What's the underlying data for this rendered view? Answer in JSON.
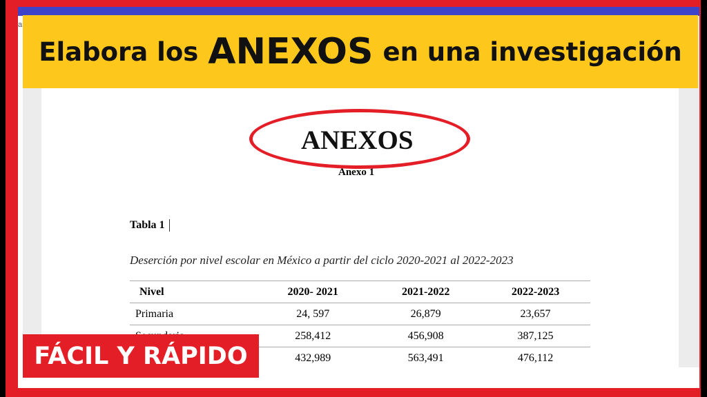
{
  "banner": {
    "pre": "Elabora los",
    "highlight": "ANEXOS",
    "post": "en una investigación"
  },
  "background_fragment": "arc",
  "document": {
    "title": "ANEXOS",
    "subtitle": "Anexo 1",
    "table_label": "Tabla 1",
    "caption": "Deserción por nivel escolar en México a partir del ciclo 2020-2021 al 2022-2023",
    "table": {
      "headers": [
        "Nivel",
        "2020- 2021",
        "2021-2022",
        "2022-2023"
      ],
      "rows": [
        [
          "Primaria",
          "24, 597",
          "26,879",
          "23,657"
        ],
        [
          "Secundaria",
          "258,412",
          "456,908",
          "387,125"
        ],
        [
          "",
          "432,989",
          "563,491",
          "476,112"
        ]
      ]
    }
  },
  "badge": "FÁCIL Y RÁPIDO",
  "colors": {
    "frame": "#e41e26",
    "banner": "#fdc71c",
    "bluebar": "#3d44c8"
  }
}
